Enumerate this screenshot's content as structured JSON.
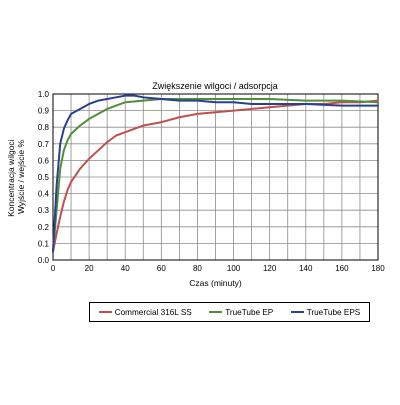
{
  "chart_data": {
    "type": "line",
    "title": "Zwiększenie wilgoci / adsorpcja",
    "xlabel": "Czas (minuty)",
    "ylabel_lines": [
      "Koncentracja wilgoci",
      "Wyjście / wejście %"
    ],
    "xlim": [
      0,
      180
    ],
    "ylim": [
      0,
      1.0
    ],
    "x_ticks": [
      0,
      20,
      40,
      60,
      80,
      100,
      120,
      140,
      160,
      180
    ],
    "y_ticks": [
      0.0,
      0.1,
      0.2,
      0.3,
      0.4,
      0.5,
      0.6,
      0.7,
      0.8,
      0.9,
      1.0
    ],
    "x_tick_labels": [
      "0",
      "20",
      "40",
      "60",
      "80",
      "100",
      "120",
      "140",
      "160",
      "180"
    ],
    "y_tick_labels": [
      "0.0",
      "0.1",
      "0.2",
      "0.3",
      "0.4",
      "0.5",
      "0.6",
      "0.7",
      "0.8",
      "0.9",
      "1.0"
    ],
    "grid": true,
    "legend_position": "bottom",
    "series": [
      {
        "name": "Commercial 316L SS",
        "color": "#c0504d",
        "x": [
          0,
          2,
          4,
          6,
          8,
          10,
          15,
          20,
          25,
          30,
          35,
          40,
          50,
          60,
          70,
          80,
          90,
          100,
          110,
          120,
          130,
          140,
          150,
          160,
          170,
          180
        ],
        "y": [
          0.05,
          0.16,
          0.26,
          0.35,
          0.42,
          0.47,
          0.55,
          0.61,
          0.66,
          0.71,
          0.75,
          0.77,
          0.81,
          0.83,
          0.86,
          0.88,
          0.89,
          0.9,
          0.91,
          0.92,
          0.93,
          0.94,
          0.94,
          0.95,
          0.95,
          0.96
        ]
      },
      {
        "name": "TrueTube EP",
        "color": "#4f8f3a",
        "x": [
          0,
          2,
          4,
          6,
          8,
          10,
          15,
          20,
          25,
          30,
          35,
          40,
          50,
          60,
          70,
          80,
          90,
          100,
          120,
          140,
          160,
          180
        ],
        "y": [
          0.05,
          0.3,
          0.55,
          0.66,
          0.72,
          0.76,
          0.81,
          0.85,
          0.88,
          0.91,
          0.93,
          0.95,
          0.96,
          0.97,
          0.97,
          0.97,
          0.97,
          0.97,
          0.97,
          0.96,
          0.96,
          0.95
        ]
      },
      {
        "name": "TrueTube EPS",
        "color": "#2b3f8f",
        "x": [
          0,
          2,
          4,
          6,
          8,
          10,
          15,
          20,
          25,
          30,
          35,
          40,
          45,
          50,
          60,
          70,
          80,
          90,
          100,
          110,
          120,
          140,
          160,
          180
        ],
        "y": [
          0.05,
          0.45,
          0.7,
          0.79,
          0.84,
          0.88,
          0.91,
          0.94,
          0.96,
          0.97,
          0.98,
          0.99,
          0.99,
          0.98,
          0.97,
          0.96,
          0.96,
          0.95,
          0.95,
          0.94,
          0.94,
          0.94,
          0.93,
          0.93
        ]
      }
    ]
  }
}
